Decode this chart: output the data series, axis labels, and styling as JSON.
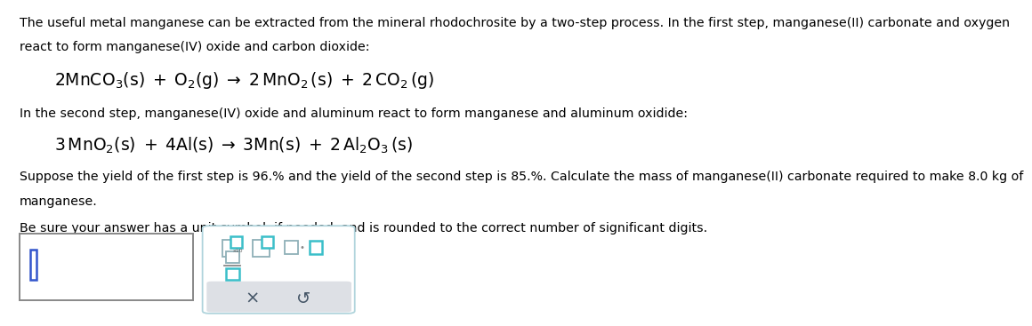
{
  "bg_color": "#ffffff",
  "text_color": "#000000",
  "paragraph1_line1": "The useful metal manganese can be extracted from the mineral rhodochrosite by a two-step process. In the first step, manganese(II) carbonate and oxygen",
  "paragraph1_line2": "react to form manganese(IV) oxide and carbon dioxide:",
  "eq1": "$\\mathregular{2MnCO_3(s)\\;+\\;O_2(g)\\;\\rightarrow\\;2\\,MnO_2\\,(s)\\;+\\;2\\,CO_2\\,(g)}$",
  "paragraph2": "In the second step, manganese(IV) oxide and aluminum react to form manganese and aluminum oxidide:",
  "eq2": "$\\mathregular{3\\,MnO_2(s)\\;+\\;4Al(s)\\;\\rightarrow\\;3Mn(s)\\;+\\;2\\,Al_2O_3\\,(s)}$",
  "paragraph3_line1": "Suppose the yield of the first step is 96.% and the yield of the second step is 85.%. Calculate the mass of manganese(II) carbonate required to make 8.0 kg of",
  "paragraph3_line2": "manganese.",
  "paragraph4": "Be sure your answer has a unit symbol, if needed, and is rounded to the correct number of significant digits.",
  "teal": "#3bbfc9",
  "gray_icon": "#8fb0b8",
  "panel_border": "#b0d4dc",
  "input_border": "#888888",
  "cursor_color": "#3355cc",
  "btn_bg": "#dde0e5",
  "x_color": "#445566",
  "refresh_color": "#445566"
}
